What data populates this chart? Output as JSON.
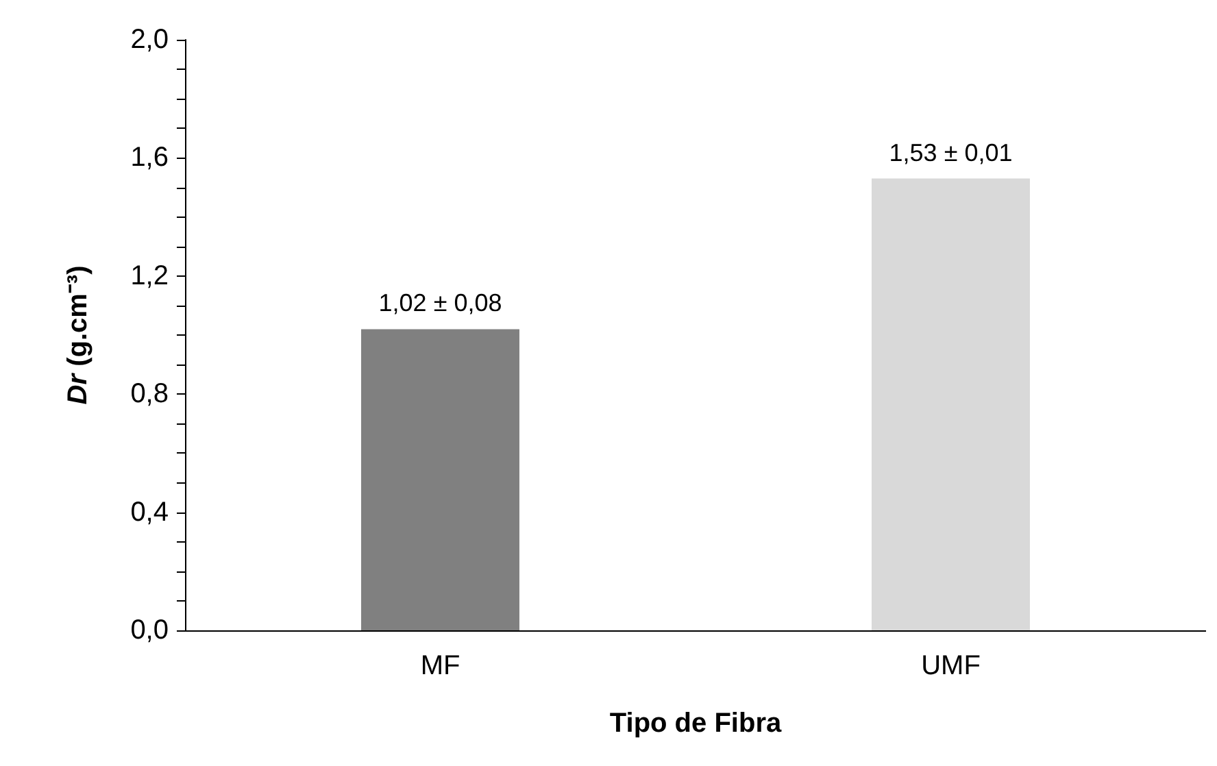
{
  "chart_data": {
    "type": "bar",
    "xlabel": "Tipo de Fibra",
    "ylabel": "Dr (g.cm⁻³)",
    "categories": [
      "MF",
      "UMF"
    ],
    "values": [
      1.02,
      1.53
    ],
    "colors": [
      "#808080",
      "#d9d9d9"
    ],
    "value_labels": [
      "1,02 ± 0,08",
      "1,53 ± 0,01"
    ],
    "ylim": [
      0,
      2
    ],
    "yticks": [
      {
        "value": 0,
        "label": "0,0"
      },
      {
        "value": 0.1,
        "label": null
      },
      {
        "value": 0.2,
        "label": null
      },
      {
        "value": 0.3,
        "label": null
      },
      {
        "value": 0.4,
        "label": "0,4"
      },
      {
        "value": 0.5,
        "label": null
      },
      {
        "value": 0.6,
        "label": null
      },
      {
        "value": 0.7,
        "label": null
      },
      {
        "value": 0.8,
        "label": "0,8"
      },
      {
        "value": 0.9,
        "label": null
      },
      {
        "value": 1.0,
        "label": null
      },
      {
        "value": 1.1,
        "label": null
      },
      {
        "value": 1.2,
        "label": "1,2"
      },
      {
        "value": 1.3,
        "label": null
      },
      {
        "value": 1.4,
        "label": null
      },
      {
        "value": 1.5,
        "label": null
      },
      {
        "value": 1.6,
        "label": "1,6"
      },
      {
        "value": 1.7,
        "label": null
      },
      {
        "value": 1.8,
        "label": null
      },
      {
        "value": 1.9,
        "label": null
      },
      {
        "value": 2.0,
        "label": "2,0"
      }
    ],
    "grid": false
  }
}
